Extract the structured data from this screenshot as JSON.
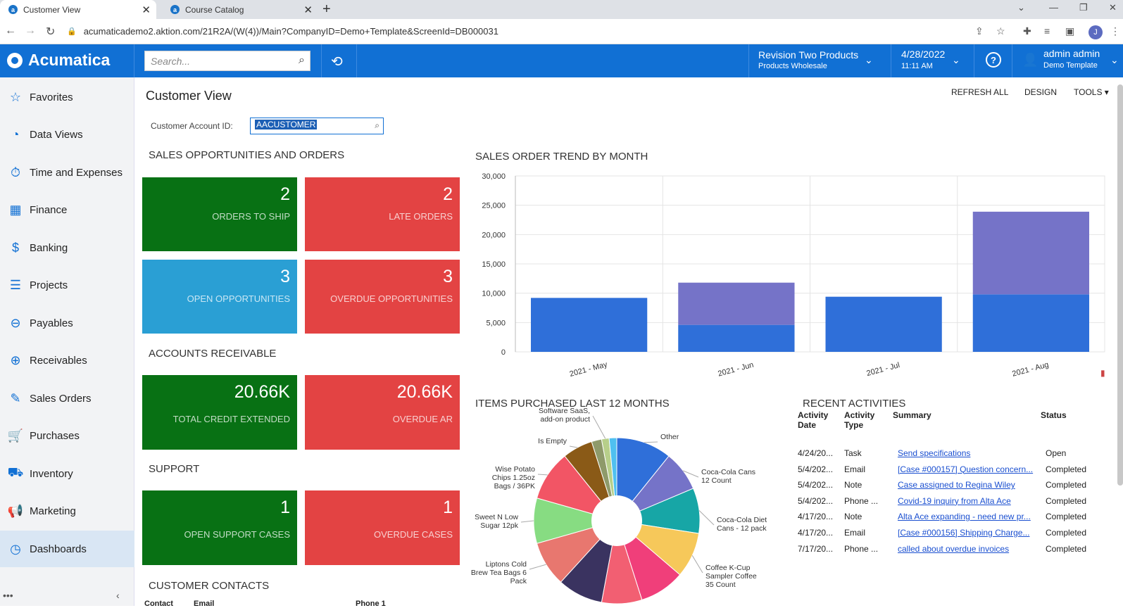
{
  "browser": {
    "tabs": [
      {
        "title": "Customer View",
        "active": true
      },
      {
        "title": "Course Catalog",
        "active": false
      }
    ],
    "url": "acumaticademo2.aktion.com/21R2A/(W(4))/Main?CompanyID=Demo+Template&ScreenId=DB000031",
    "profile_initial": "J"
  },
  "topbar": {
    "brand": "Acumatica",
    "search_placeholder": "Search...",
    "company": "Revision Two Products",
    "branch": "Products Wholesale",
    "date": "4/28/2022",
    "time": "11:11 AM",
    "user": "admin admin",
    "tenant": "Demo Template",
    "help": "?"
  },
  "sidebar": {
    "items": [
      {
        "label": "Favorites",
        "icon": "star-icon",
        "glyph": "☆"
      },
      {
        "label": "Data Views",
        "icon": "pie-chart-icon",
        "glyph": "◔"
      },
      {
        "label": "Time and Expenses",
        "icon": "stopwatch-icon",
        "glyph": "⏱"
      },
      {
        "label": "Finance",
        "icon": "calculator-icon",
        "glyph": "▦"
      },
      {
        "label": "Banking",
        "icon": "dollar-icon",
        "glyph": "$"
      },
      {
        "label": "Projects",
        "icon": "projects-icon",
        "glyph": "☰"
      },
      {
        "label": "Payables",
        "icon": "minus-circle-icon",
        "glyph": "⊖"
      },
      {
        "label": "Receivables",
        "icon": "plus-circle-icon",
        "glyph": "⊕"
      },
      {
        "label": "Sales Orders",
        "icon": "edit-icon",
        "glyph": "✎"
      },
      {
        "label": "Purchases",
        "icon": "cart-icon",
        "glyph": "🛒"
      },
      {
        "label": "Inventory",
        "icon": "truck-icon",
        "glyph": "⛟"
      },
      {
        "label": "Marketing",
        "icon": "megaphone-icon",
        "glyph": "📢"
      },
      {
        "label": "Dashboards",
        "icon": "gauge-icon",
        "glyph": "◷",
        "active": true
      }
    ],
    "more": "•••",
    "collapse": "‹"
  },
  "page": {
    "title": "Customer View",
    "toolbar": {
      "refresh": "REFRESH ALL",
      "design": "DESIGN",
      "tools": "TOOLS ▾"
    },
    "account_label": "Customer Account ID:",
    "account_value": "AACUSTOMER"
  },
  "sections": {
    "sales": "SALES OPPORTUNITIES AND ORDERS",
    "ar": "ACCOUNTS RECEIVABLE",
    "support": "SUPPORT",
    "contacts": "CUSTOMER CONTACTS",
    "trend": "SALES ORDER TREND BY MONTH",
    "items": "ITEMS PURCHASED LAST 12 MONTHS",
    "activities": "RECENT ACTIVITIES"
  },
  "tiles": {
    "orders_to_ship": {
      "value": "2",
      "label": "ORDERS TO SHIP",
      "color": "#087114"
    },
    "late_orders": {
      "value": "2",
      "label": "LATE ORDERS",
      "color": "#e34343"
    },
    "open_opps": {
      "value": "3",
      "label": "OPEN OPPORTUNITIES",
      "color": "#2a9fd4"
    },
    "overdue_opps": {
      "value": "3",
      "label": "OVERDUE OPPORTUNITIES",
      "color": "#e34343"
    },
    "credit": {
      "value": "20.66K",
      "label": "TOTAL CREDIT EXTENDED",
      "color": "#087114"
    },
    "overdue_ar": {
      "value": "20.66K",
      "label": "OVERDUE AR",
      "color": "#e34343"
    },
    "support_open": {
      "value": "1",
      "label": "OPEN SUPPORT CASES",
      "color": "#087114"
    },
    "support_overdue": {
      "value": "1",
      "label": "OVERDUE CASES",
      "color": "#e34343"
    }
  },
  "contacts_columns": [
    "Contact",
    "Email",
    "Phone 1"
  ],
  "activities": {
    "headers": [
      "Activity Date",
      "Activity Type",
      "Summary",
      "Status"
    ],
    "rows": [
      {
        "date": "4/24/20...",
        "type": "Task",
        "summary": "Send specifications",
        "status": "Open"
      },
      {
        "date": "5/4/202...",
        "type": "Email",
        "summary": "[Case #000157] Question concern...",
        "status": "Completed"
      },
      {
        "date": "5/4/202...",
        "type": "Note",
        "summary": "Case assigned to Regina Wiley",
        "status": "Completed"
      },
      {
        "date": "5/4/202...",
        "type": "Phone ...",
        "summary": "Covid-19 inquiry from Alta Ace",
        "status": "Completed"
      },
      {
        "date": "4/17/20...",
        "type": "Note",
        "summary": "Alta Ace expanding - need new pr...",
        "status": "Completed"
      },
      {
        "date": "4/17/20...",
        "type": "Email",
        "summary": "[Case #000156] Shipping Charge...",
        "status": "Completed"
      },
      {
        "date": "7/17/20...",
        "type": "Phone ...",
        "summary": "called about overdue invoices",
        "status": "Completed"
      }
    ]
  },
  "chart_data": [
    {
      "type": "bar",
      "title": "SALES ORDER TREND BY MONTH",
      "categories": [
        "2021 - May",
        "2021 - Jun",
        "2021 - Jul",
        "2021 - Aug"
      ],
      "series": [
        {
          "values": [
            9200,
            4600,
            9400,
            9800
          ],
          "color": "#2f6fd9"
        },
        {
          "values": [
            0,
            7200,
            0,
            14100
          ],
          "color": "#7573c8"
        }
      ],
      "stacked": true,
      "ylim": [
        0,
        30000
      ],
      "yticks": [
        "0",
        "5,000",
        "10,000",
        "15,000",
        "20,000",
        "25,000",
        "30,000"
      ],
      "grid": true
    },
    {
      "type": "pie",
      "title": "ITEMS PURCHASED LAST 12 MONTHS",
      "donut": true,
      "slices": [
        {
          "label": "Other",
          "value": 11,
          "color": "#2f6fd9"
        },
        {
          "label": "Coca-Cola Cans 12 Count",
          "value": 8,
          "color": "#7573c8"
        },
        {
          "label": "Coca-Cola Diet Cans - 12 pack",
          "value": 9,
          "color": "#17a6a6"
        },
        {
          "label": "Coffee K-Cup Sampler Coffee 35 Count",
          "value": 9,
          "color": "#f6c85a"
        },
        {
          "label": "",
          "value": 9,
          "color": "#f03f7a"
        },
        {
          "label": "",
          "value": 8,
          "color": "#f25f72"
        },
        {
          "label": "",
          "value": 9,
          "color": "#3a3360"
        },
        {
          "label": "Liptons Cold Brew Tea Bags 6 Pack",
          "value": 9,
          "color": "#e8776f"
        },
        {
          "label": "Sweet N Low Sugar 12pk",
          "value": 9,
          "color": "#87dc82"
        },
        {
          "label": "Wise Potato Chips 1.25oz Bags / 36PK",
          "value": 10,
          "color": "#f25565"
        },
        {
          "label": "Is Empty",
          "value": 6,
          "color": "#8a5a17"
        },
        {
          "label": "",
          "value": 2,
          "color": "#8e9a6a"
        },
        {
          "label": "Software SaaS, add-on product",
          "value": 1.5,
          "color": "#b7cf8a"
        },
        {
          "label": "",
          "value": 1.5,
          "color": "#4fc0f0"
        }
      ]
    }
  ]
}
